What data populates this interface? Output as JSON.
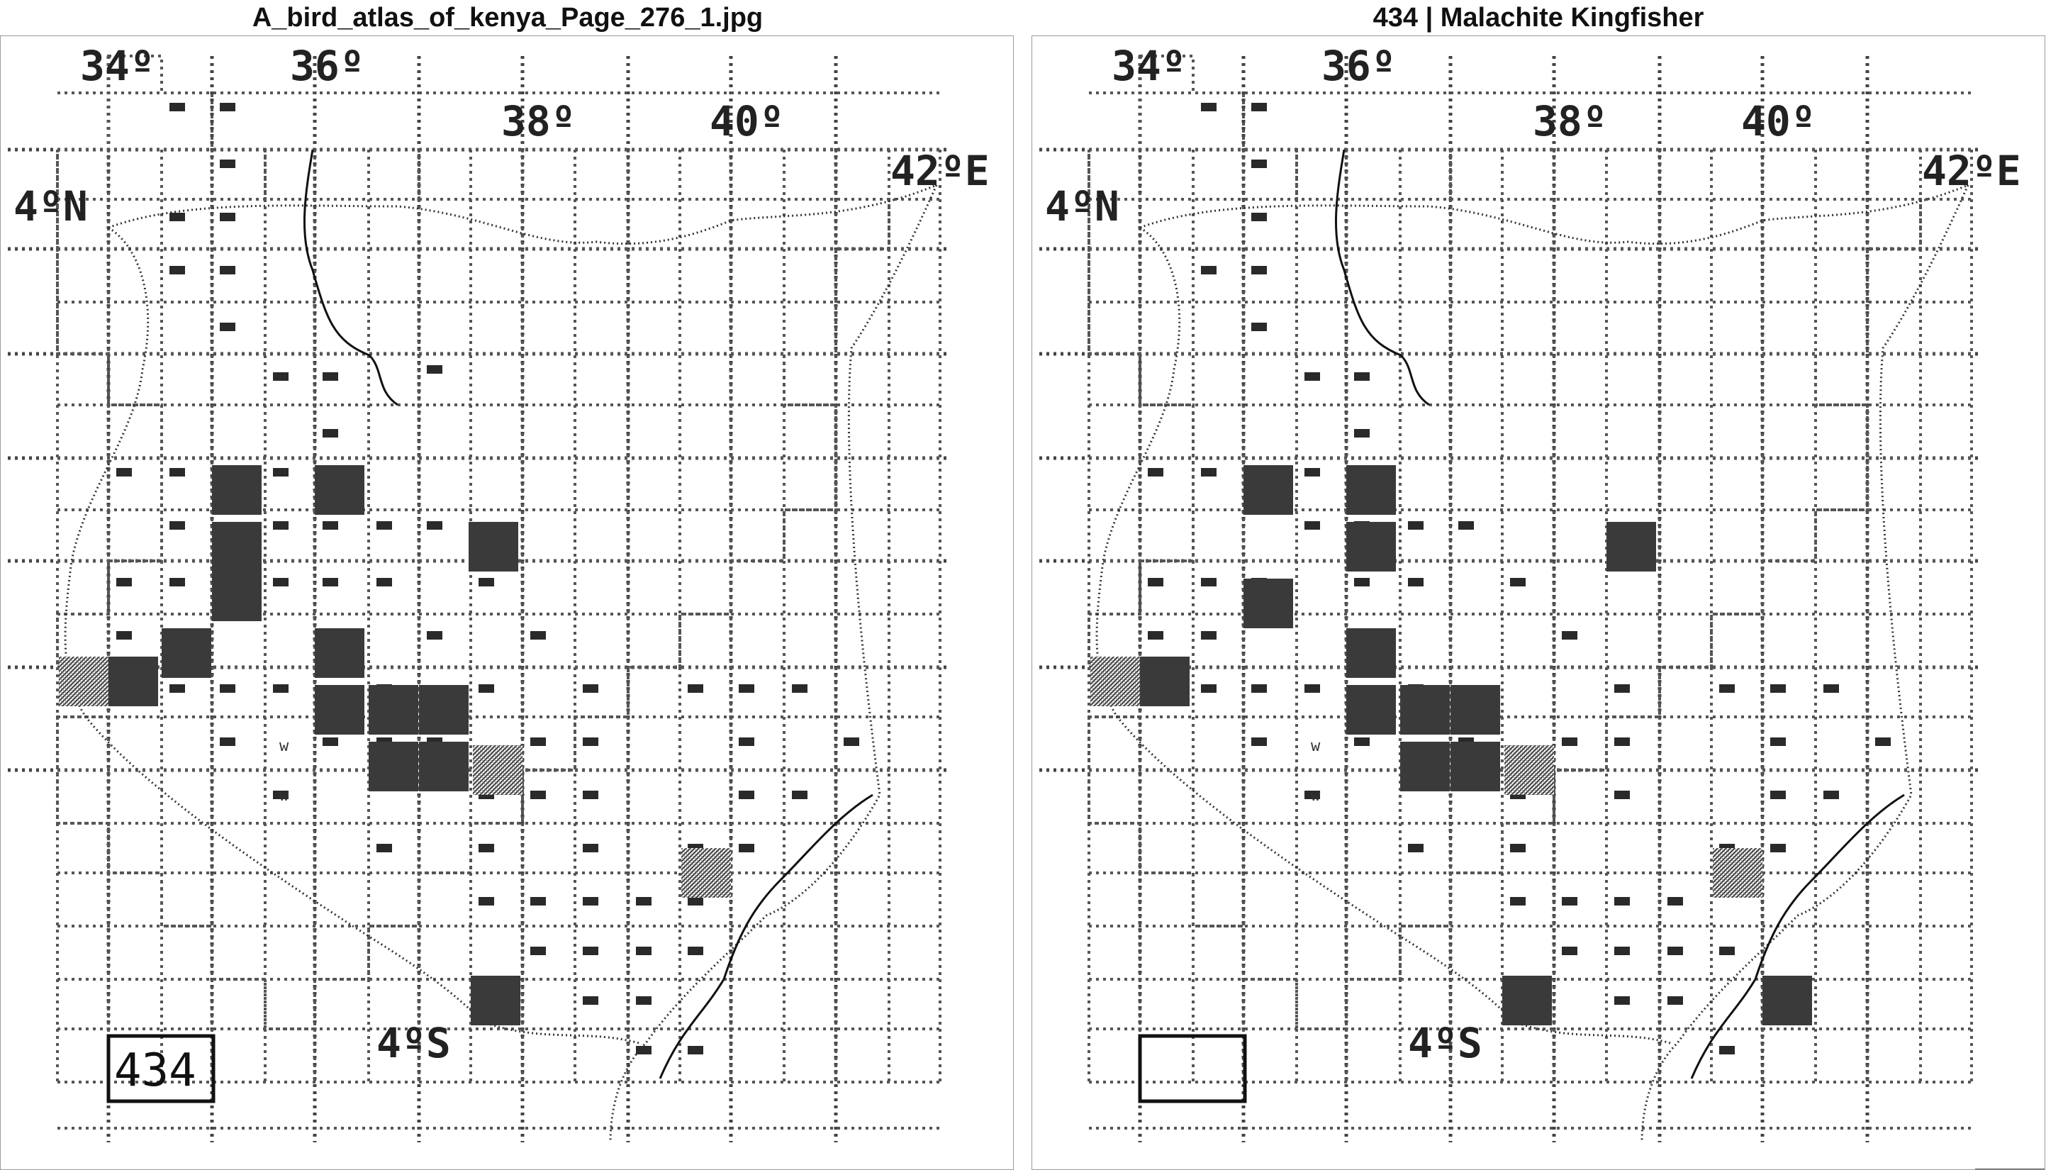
{
  "left_panel": {
    "title": "A_bird_atlas_of_kenya_Page_276_1.jpg",
    "species_number": "434"
  },
  "right_panel": {
    "title": "434 | Malachite Kingfisher",
    "species_number": ""
  },
  "map_labels": {
    "lon_34": "34º",
    "lon_36": "36º",
    "lon_38": "38º",
    "lon_40": "40º",
    "lon_42": "42ºE",
    "lat_4n": "4ºN",
    "lat_4s": "4ºS"
  },
  "cell_marker_text": "w",
  "colors": {
    "grid": "#444444",
    "mark": "#2a2a2a",
    "border": "#9a9a9a"
  }
}
